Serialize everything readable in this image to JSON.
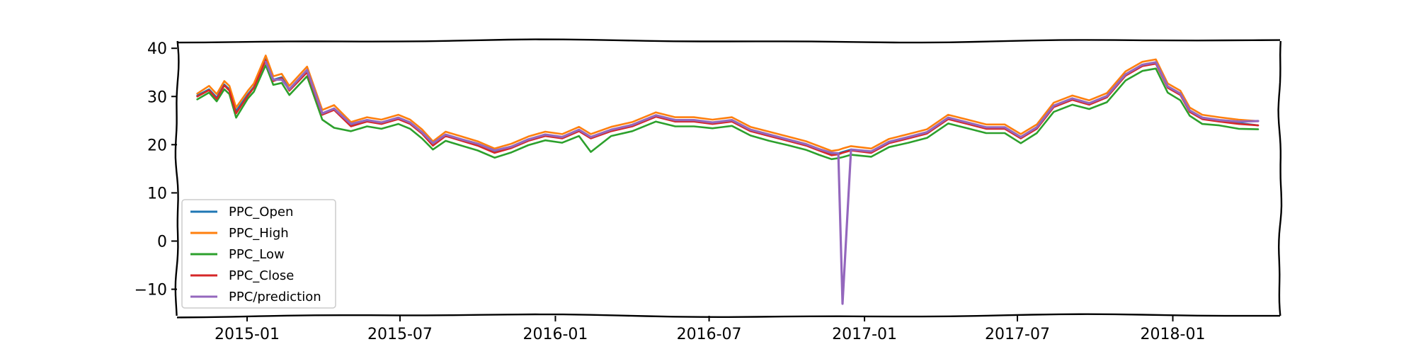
{
  "chart_data": {
    "type": "line",
    "style": "xkcd-sketch",
    "title": "",
    "xlabel": "",
    "ylabel": "",
    "xlim": [
      "2014-10-10",
      "2018-05-08"
    ],
    "ylim": [
      -15.5,
      41.5
    ],
    "grid": false,
    "legend": {
      "placement": "lower-left"
    },
    "y_ticks": [
      40,
      30,
      20,
      10,
      0,
      -10
    ],
    "y_tick_labels": [
      "40",
      "30",
      "20",
      "10",
      "0",
      "−10"
    ],
    "x_ticks": [
      "2015-01-01",
      "2015-07-01",
      "2016-01-01",
      "2016-07-01",
      "2017-01-01",
      "2017-07-01",
      "2018-01-01"
    ],
    "x_tick_labels": [
      "2015-01",
      "2015-07",
      "2016-01",
      "2016-07",
      "2017-01",
      "2017-07",
      "2018-01"
    ],
    "dates": [
      "2014-11-03",
      "2014-11-17",
      "2014-11-26",
      "2014-12-05",
      "2014-12-11",
      "2014-12-19",
      "2015-01-02",
      "2015-01-09",
      "2015-01-23",
      "2015-02-01",
      "2015-02-11",
      "2015-02-20",
      "2015-03-13",
      "2015-03-31",
      "2015-04-14",
      "2015-05-04",
      "2015-05-23",
      "2015-06-09",
      "2015-06-29",
      "2015-07-13",
      "2015-07-27",
      "2015-08-09",
      "2015-08-24",
      "2015-09-12",
      "2015-10-01",
      "2015-10-21",
      "2015-11-10",
      "2015-11-30",
      "2015-12-20",
      "2016-01-09",
      "2016-01-29",
      "2016-02-12",
      "2016-03-07",
      "2016-04-01",
      "2016-04-29",
      "2016-05-22",
      "2016-06-13",
      "2016-07-05",
      "2016-07-28",
      "2016-08-19",
      "2016-09-10",
      "2016-10-02",
      "2016-10-24",
      "2016-11-08",
      "2016-11-23",
      "2016-12-01",
      "2016-12-06",
      "2016-12-16",
      "2017-01-09",
      "2017-01-30",
      "2017-02-22",
      "2017-03-16",
      "2017-04-10",
      "2017-05-03",
      "2017-05-25",
      "2017-06-16",
      "2017-07-05",
      "2017-07-24",
      "2017-08-13",
      "2017-09-04",
      "2017-09-24",
      "2017-10-15",
      "2017-11-06",
      "2017-11-26",
      "2017-12-12",
      "2017-12-26",
      "2018-01-10",
      "2018-01-21",
      "2018-02-05",
      "2018-02-25",
      "2018-03-20",
      "2018-04-12"
    ],
    "series": [
      {
        "name": "PPC_Open",
        "color": "#1f77b4",
        "values": [
          30.2,
          31.5,
          29.8,
          32.5,
          31.5,
          27.0,
          30.5,
          32.0,
          37.8,
          33.5,
          34.0,
          31.5,
          35.5,
          26.5,
          27.5,
          24.0,
          25.0,
          24.5,
          25.5,
          24.5,
          22.5,
          20.0,
          22.0,
          21.0,
          20.0,
          18.5,
          19.5,
          21.0,
          22.0,
          21.5,
          23.0,
          21.5,
          23.0,
          24.0,
          26.0,
          25.0,
          25.0,
          24.5,
          25.0,
          23.0,
          22.0,
          21.0,
          20.0,
          19.0,
          18.0,
          18.2,
          18.5,
          19.0,
          18.5,
          20.5,
          21.5,
          22.5,
          25.5,
          24.5,
          23.5,
          23.5,
          21.5,
          23.5,
          28.0,
          29.5,
          28.5,
          30.0,
          34.5,
          36.5,
          37.0,
          32.0,
          30.5,
          27.0,
          25.5,
          25.0,
          24.5,
          24.0
        ]
      },
      {
        "name": "PPC_High",
        "color": "#ff7f0e",
        "values": [
          30.6,
          32.2,
          30.5,
          33.2,
          32.2,
          27.7,
          31.2,
          32.7,
          38.5,
          34.2,
          34.7,
          32.2,
          36.2,
          27.2,
          28.2,
          24.7,
          25.7,
          25.2,
          26.2,
          25.2,
          23.2,
          20.7,
          22.7,
          21.7,
          20.7,
          19.2,
          20.2,
          21.7,
          22.7,
          22.2,
          23.7,
          22.2,
          23.7,
          24.7,
          26.7,
          25.7,
          25.7,
          25.2,
          25.7,
          23.7,
          22.7,
          21.7,
          20.7,
          19.7,
          18.7,
          18.9,
          19.2,
          19.7,
          19.2,
          21.2,
          22.2,
          23.2,
          26.2,
          25.2,
          24.2,
          24.2,
          22.2,
          24.2,
          28.7,
          30.2,
          29.2,
          30.7,
          35.2,
          37.2,
          37.7,
          32.7,
          31.2,
          27.7,
          26.2,
          25.7,
          25.2,
          24.9
        ]
      },
      {
        "name": "PPC_Low",
        "color": "#2ca02c",
        "values": [
          29.4,
          30.8,
          29.0,
          31.5,
          30.5,
          25.6,
          29.6,
          31.0,
          36.5,
          32.4,
          32.8,
          30.3,
          34.2,
          25.2,
          23.5,
          22.8,
          23.8,
          23.3,
          24.3,
          23.3,
          21.3,
          19.0,
          20.8,
          19.8,
          18.8,
          17.3,
          18.4,
          19.9,
          20.9,
          20.4,
          21.8,
          18.5,
          21.8,
          22.8,
          24.8,
          23.8,
          23.8,
          23.4,
          23.9,
          21.9,
          20.8,
          19.9,
          18.9,
          17.9,
          17.0,
          17.2,
          17.4,
          17.9,
          17.5,
          19.5,
          20.4,
          21.4,
          24.4,
          23.4,
          22.4,
          22.4,
          20.3,
          22.4,
          26.8,
          28.3,
          27.4,
          28.8,
          33.3,
          35.3,
          35.8,
          30.8,
          29.2,
          26.0,
          24.3,
          24.0,
          23.3,
          23.2
        ]
      },
      {
        "name": "PPC_Close",
        "color": "#d62728",
        "values": [
          30.0,
          31.3,
          29.5,
          32.3,
          31.2,
          26.5,
          30.2,
          31.8,
          37.5,
          33.2,
          33.8,
          31.2,
          35.0,
          26.2,
          27.2,
          23.8,
          24.8,
          24.3,
          25.3,
          24.3,
          22.3,
          19.8,
          21.8,
          20.8,
          19.8,
          18.3,
          19.3,
          20.8,
          21.8,
          21.3,
          22.8,
          21.3,
          22.8,
          23.8,
          25.8,
          24.8,
          24.8,
          24.3,
          24.8,
          22.8,
          21.8,
          20.8,
          19.8,
          18.8,
          17.8,
          18.0,
          18.3,
          18.8,
          18.3,
          20.3,
          21.3,
          22.3,
          25.3,
          24.3,
          23.3,
          23.3,
          21.3,
          23.3,
          27.8,
          29.3,
          28.3,
          29.8,
          34.3,
          36.3,
          36.8,
          31.8,
          30.3,
          26.8,
          25.3,
          24.8,
          24.3,
          24.0
        ]
      },
      {
        "name": "PPC/prediction",
        "color": "#9467bd",
        "values": [
          null,
          null,
          null,
          null,
          null,
          null,
          null,
          null,
          37.2,
          33.5,
          33.5,
          31.5,
          35.5,
          26.5,
          27.5,
          24.3,
          25.1,
          24.6,
          25.6,
          24.6,
          22.6,
          20.3,
          22.1,
          21.1,
          20.2,
          18.8,
          19.6,
          21.1,
          22.1,
          21.6,
          23.1,
          21.6,
          23.1,
          24.1,
          26.1,
          25.1,
          25.1,
          24.6,
          25.1,
          23.1,
          22.1,
          21.1,
          20.1,
          19.1,
          18.3,
          18.2,
          -13.0,
          19.0,
          18.6,
          20.6,
          21.6,
          22.6,
          25.6,
          24.6,
          23.6,
          23.6,
          21.6,
          23.6,
          28.1,
          29.6,
          28.6,
          30.1,
          34.6,
          36.6,
          37.1,
          32.1,
          30.6,
          27.1,
          25.6,
          25.1,
          24.8,
          24.9
        ]
      }
    ]
  }
}
